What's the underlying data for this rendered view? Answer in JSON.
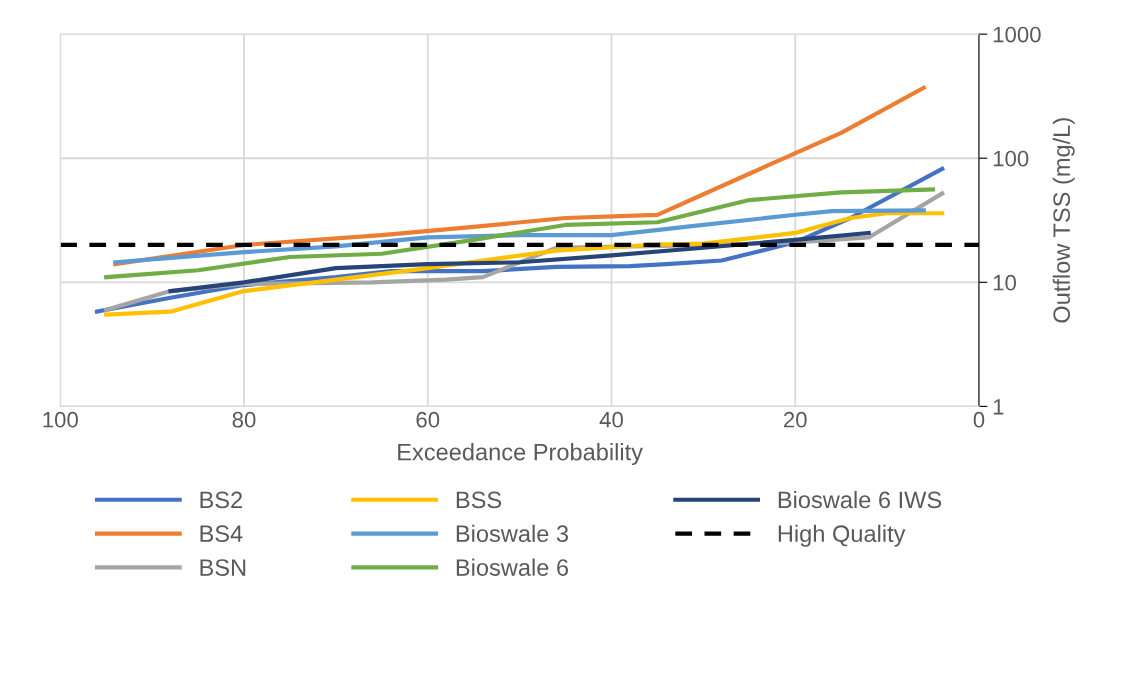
{
  "chart_data": {
    "type": "line",
    "xlabel": "Exceedance Probability",
    "ylabel": "Outflow TSS (mg/L)",
    "log": "y",
    "xlim": [
      100,
      0
    ],
    "xticks": [
      100,
      80,
      60,
      40,
      20,
      0
    ],
    "ylim": [
      1,
      1000
    ],
    "yticks": [
      1,
      10,
      100,
      1000
    ],
    "grid": true,
    "legend": "bottom",
    "marker": "none",
    "line_style": "solid",
    "series": [
      {
        "name": "BS2",
        "color": "#4472c4",
        "x": [
          96,
          88,
          80,
          70,
          64,
          54,
          46,
          38,
          34,
          28,
          20,
          14,
          4
        ],
        "values": [
          5.8,
          7.5,
          9.5,
          11,
          12.3,
          12.3,
          13.3,
          13.5,
          14,
          15,
          21,
          33,
          82
        ]
      },
      {
        "name": "BS4",
        "color": "#ed7d31",
        "x": [
          94,
          80,
          65,
          55,
          45,
          35,
          25,
          15,
          6
        ],
        "values": [
          14,
          20,
          24,
          28,
          33,
          35,
          75,
          160,
          370
        ]
      },
      {
        "name": "BSN",
        "color": "#a5a5a5",
        "x": [
          95,
          88,
          80,
          66,
          58,
          54,
          46,
          38,
          28,
          20,
          12,
          4
        ],
        "values": [
          6,
          8.5,
          9.7,
          10,
          10.5,
          11,
          19,
          19.5,
          20,
          21,
          23,
          52
        ]
      },
      {
        "name": "BSS",
        "color": "#ffc000",
        "x": [
          95,
          88,
          80,
          70,
          60,
          46,
          36,
          30,
          20,
          14,
          10,
          4
        ],
        "values": [
          5.5,
          5.8,
          8.5,
          10.5,
          13,
          18,
          20,
          20.5,
          25,
          33,
          36,
          36
        ]
      },
      {
        "name": "Bioswale 3",
        "color": "#5b9bd5",
        "x": [
          94,
          80,
          70,
          60,
          50,
          40,
          30,
          20,
          16,
          6
        ],
        "values": [
          14.5,
          17.5,
          19.5,
          23,
          24,
          24,
          29,
          35,
          37.5,
          38
        ]
      },
      {
        "name": "Bioswale 6",
        "color": "#70ad47",
        "x": [
          95,
          85,
          75,
          65,
          55,
          45,
          35,
          25,
          15,
          5
        ],
        "values": [
          11,
          12.5,
          16,
          17,
          22,
          29,
          30.5,
          46,
          53,
          56
        ]
      },
      {
        "name": "Bioswale 6 IWS",
        "color": "#264478",
        "x": [
          88,
          80,
          70,
          60,
          50,
          40,
          30,
          20,
          12
        ],
        "values": [
          8.5,
          10,
          13,
          14,
          14.5,
          16.5,
          19,
          22,
          25
        ]
      }
    ],
    "ref_lines": [
      {
        "axis": "y",
        "value": 20,
        "label": "High Quality",
        "color": "#000000",
        "line_style": "dashed"
      }
    ]
  }
}
